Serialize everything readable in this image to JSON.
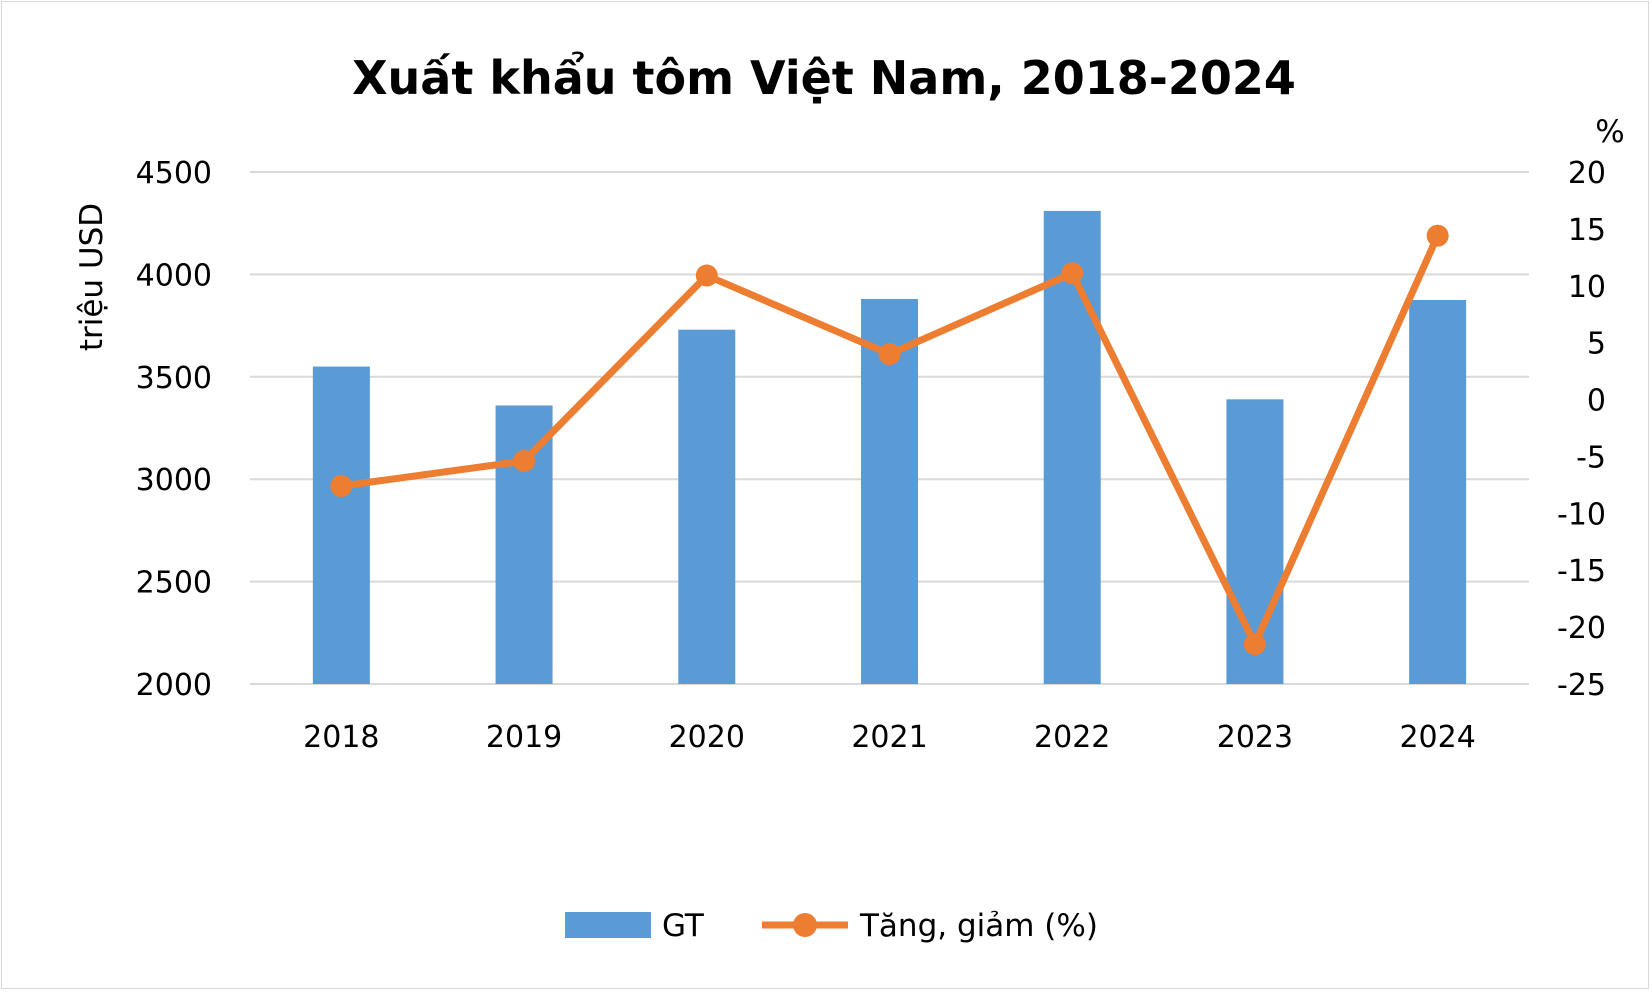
{
  "chart_data": {
    "type": "bar",
    "title": "Xuất khẩu tôm Việt Nam, 2018-2024",
    "categories": [
      "2018",
      "2019",
      "2020",
      "2021",
      "2022",
      "2023",
      "2024"
    ],
    "ylabel_left": "triệu USD",
    "ylabel_right": "%",
    "ylim_left": [
      2000,
      4500
    ],
    "yticks_left": [
      "4500",
      "4000",
      "3500",
      "3000",
      "2500",
      "2000"
    ],
    "ylim_right": [
      -25,
      20
    ],
    "yticks_right": [
      "20",
      "15",
      "10",
      "5",
      "0",
      "-5",
      "-10",
      "-15",
      "-20",
      "-25"
    ],
    "grid": true,
    "legend_position": "bottom",
    "series": [
      {
        "name": "GT",
        "type": "bar",
        "axis": "left",
        "color": "#5b9bd5",
        "values": [
          3550,
          3360,
          3730,
          3880,
          4310,
          3390,
          3875
        ]
      },
      {
        "name": "Tăng, giảm (%)",
        "type": "line",
        "axis": "right",
        "color": "#ed7d31",
        "values": [
          -7.6,
          -5.4,
          10.9,
          4.0,
          11.1,
          -21.5,
          14.4
        ]
      }
    ]
  }
}
